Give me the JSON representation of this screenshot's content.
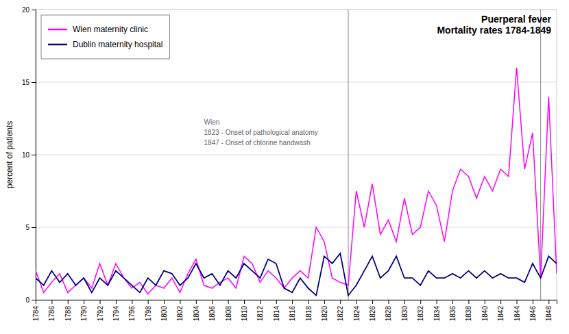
{
  "chart_data": {
    "type": "line",
    "title": "Puerperal fever\nMortality rates 1784-1849",
    "y_label": "percent of patients",
    "x": [
      1784,
      1785,
      1786,
      1787,
      1788,
      1789,
      1790,
      1791,
      1792,
      1793,
      1794,
      1795,
      1796,
      1797,
      1798,
      1799,
      1800,
      1801,
      1802,
      1803,
      1804,
      1805,
      1806,
      1807,
      1808,
      1809,
      1810,
      1811,
      1812,
      1813,
      1814,
      1815,
      1816,
      1817,
      1818,
      1819,
      1820,
      1821,
      1822,
      1823,
      1824,
      1825,
      1826,
      1827,
      1828,
      1829,
      1830,
      1831,
      1832,
      1833,
      1834,
      1835,
      1836,
      1837,
      1838,
      1839,
      1840,
      1841,
      1842,
      1843,
      1844,
      1845,
      1846,
      1847,
      1848,
      1849
    ],
    "series": [
      {
        "name": "Wien maternity clinic",
        "color": "#FF00FF",
        "values": [
          2.0,
          0.5,
          1.2,
          1.8,
          0.5,
          1.0,
          1.5,
          0.8,
          2.5,
          1.0,
          2.5,
          1.5,
          0.8,
          1.2,
          0.4,
          1.0,
          0.8,
          1.5,
          0.5,
          1.8,
          2.8,
          1.0,
          0.8,
          1.2,
          1.5,
          0.8,
          3.0,
          2.5,
          1.2,
          2.0,
          1.5,
          0.8,
          1.5,
          2.0,
          1.5,
          5.0,
          4.0,
          1.5,
          1.2,
          1.0,
          7.5,
          5.0,
          8.0,
          4.5,
          5.5,
          4.0,
          7.0,
          4.5,
          5.0,
          7.5,
          6.5,
          4.0,
          7.5,
          9.0,
          8.5,
          7.0,
          8.5,
          7.5,
          9.0,
          8.5,
          16.0,
          9.0,
          11.5,
          1.5,
          14.0,
          1.8
        ]
      },
      {
        "name": "Dublin maternity hospital",
        "color": "#000080",
        "values": [
          1.5,
          1.0,
          2.0,
          1.2,
          1.8,
          1.0,
          1.5,
          0.5,
          1.5,
          1.0,
          2.0,
          1.5,
          1.0,
          0.5,
          1.5,
          1.0,
          2.0,
          1.8,
          1.0,
          1.5,
          2.5,
          1.5,
          1.8,
          1.0,
          2.0,
          1.5,
          2.5,
          2.0,
          1.5,
          2.8,
          2.5,
          0.8,
          0.5,
          1.5,
          0.8,
          0.3,
          3.0,
          2.5,
          3.2,
          0.3,
          1.0,
          2.0,
          3.0,
          1.5,
          2.0,
          3.0,
          1.5,
          1.5,
          1.0,
          2.0,
          1.5,
          1.5,
          1.8,
          1.5,
          2.0,
          1.5,
          2.0,
          1.5,
          1.8,
          1.5,
          1.5,
          1.2,
          2.5,
          1.5,
          3.0,
          2.5
        ]
      }
    ],
    "vlines": [
      1823,
      1847
    ],
    "annotation": {
      "text": "Wien\n1823 - Onset of pathological anatomy\n1847 - Onset of chlorine handwash",
      "x": 1805,
      "y": 12.5
    },
    "xlim": [
      1784,
      1849
    ],
    "xticks": [
      1784,
      1786,
      1788,
      1790,
      1792,
      1794,
      1796,
      1798,
      1800,
      1802,
      1804,
      1806,
      1808,
      1810,
      1812,
      1814,
      1816,
      1818,
      1820,
      1822,
      1824,
      1826,
      1828,
      1830,
      1832,
      1834,
      1836,
      1838,
      1840,
      1842,
      1844,
      1846,
      1848
    ],
    "ylim": [
      0,
      20
    ],
    "yticks": [
      0,
      5,
      10,
      15,
      20
    ],
    "grid": true,
    "legend": "upper left"
  }
}
